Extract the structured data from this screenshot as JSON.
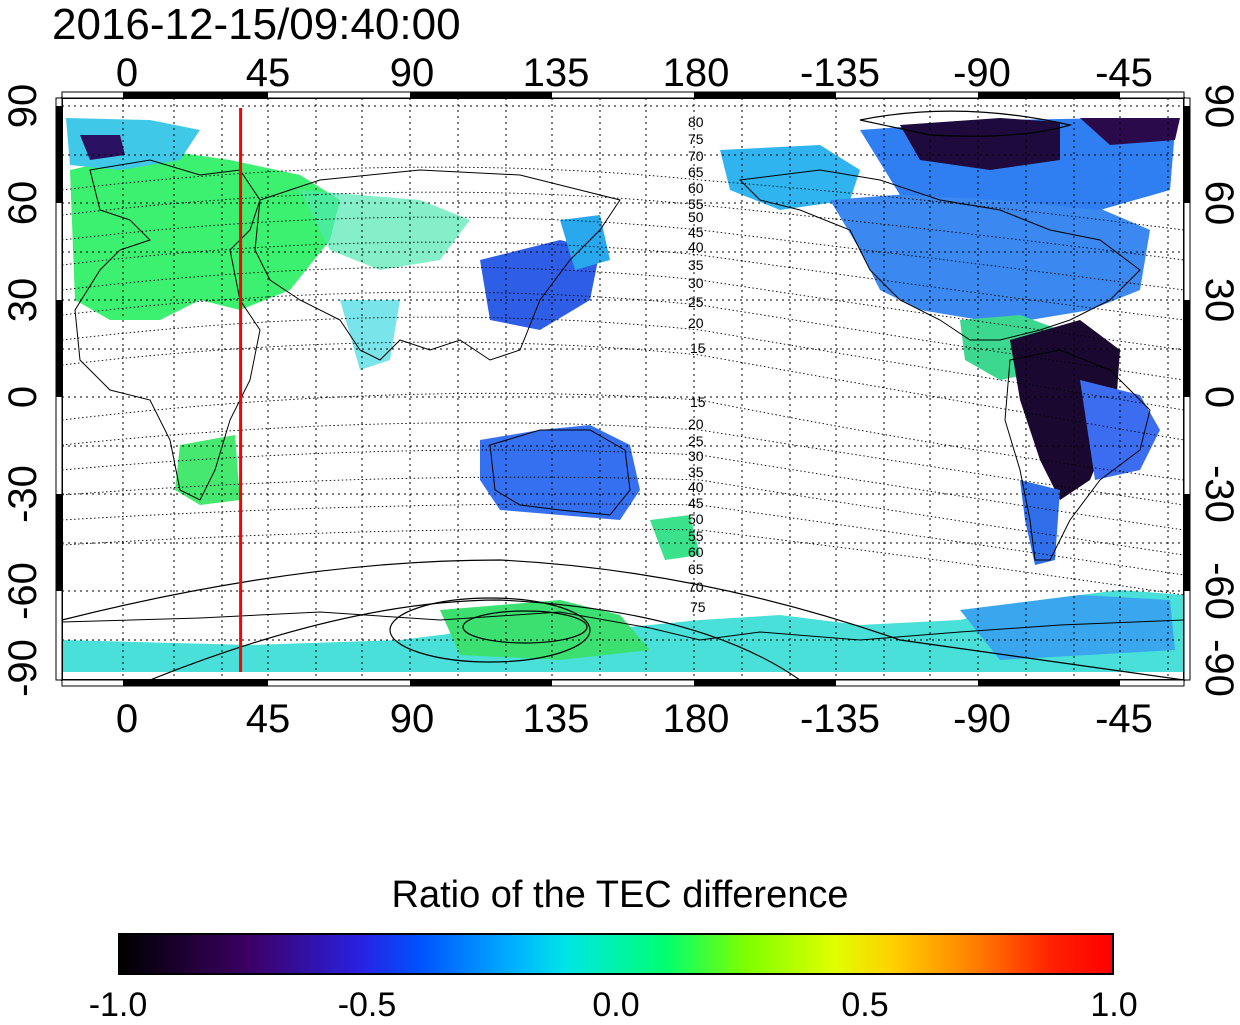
{
  "title": "2016-12-15/09:40:00",
  "map": {
    "lon_ticks_top": [
      "0",
      "45",
      "90",
      "135",
      "180",
      "-135",
      "-90",
      "-45"
    ],
    "lon_ticks_bottom": [
      "0",
      "45",
      "90",
      "135",
      "180",
      "-135",
      "-90",
      "-45"
    ],
    "lat_ticks_left": [
      "90",
      "60",
      "30",
      "0",
      "-30",
      "-60",
      "-90"
    ],
    "lat_ticks_right": [
      "90",
      "60",
      "30",
      "0",
      "-30",
      "-60",
      "-90"
    ],
    "contour_labels_north": [
      "80",
      "75",
      "70",
      "65",
      "60",
      "55",
      "50",
      "45",
      "40",
      "35",
      "30",
      "25",
      "20",
      "15"
    ],
    "contour_labels_south": [
      "15",
      "20",
      "25",
      "30",
      "35",
      "40",
      "45",
      "50",
      "55",
      "60",
      "65",
      "70",
      "75"
    ],
    "marker_line_lon": 37,
    "marker_color": "#ff0000"
  },
  "colorbar": {
    "title": "Ratio of the TEC difference",
    "min": -1.0,
    "max": 1.0,
    "tick_labels": [
      "-1.0",
      "-0.5",
      "0.0",
      "0.5",
      "1.0"
    ]
  }
}
